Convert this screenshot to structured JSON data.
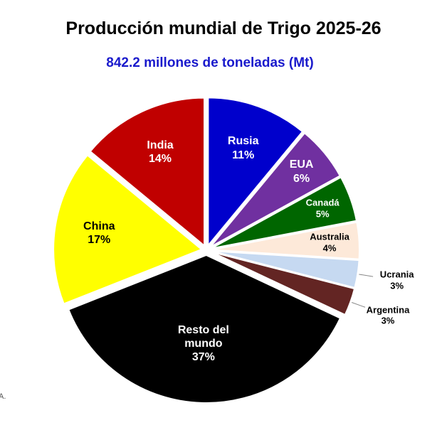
{
  "chart_data": {
    "type": "pie",
    "title": "Producción mundial de Trigo 2025-26",
    "subtitle": "842.2 millones de toneladas (Mt)",
    "categories": [
      "Rusia",
      "EUA",
      "Canadá",
      "Australia",
      "Ucrania",
      "Argentina",
      "Resto del mundo",
      "China",
      "India"
    ],
    "values": [
      11,
      6,
      5,
      4,
      3,
      3,
      37,
      17,
      14
    ],
    "value_labels": [
      "11%",
      "6%",
      "5%",
      "4%",
      "3%",
      "3%",
      "37%",
      "17%",
      "14%"
    ],
    "colors": [
      "#0000cc",
      "#7030a0",
      "#006600",
      "#fde9d9",
      "#c6d9f1",
      "#632523",
      "#000000",
      "#ffff00",
      "#c00000"
    ],
    "footnote": "A."
  }
}
